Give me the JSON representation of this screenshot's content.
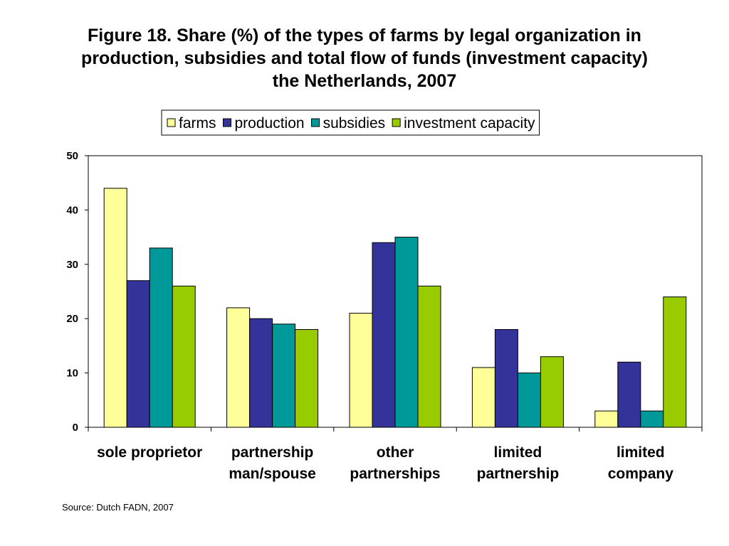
{
  "title_lines": [
    "Figure 18. Share (%) of the types of farms by legal organization in",
    "production, subsidies and total flow of funds (investment capacity)",
    "the Netherlands, 2007"
  ],
  "source": "Source: Dutch FADN, 2007",
  "chart_data": {
    "type": "bar",
    "title": "Figure 18. Share (%) of the types of farms by legal organization in production, subsidies and total flow of funds (investment capacity) the Netherlands, 2007",
    "categories": [
      [
        "sole proprietor"
      ],
      [
        "partnership",
        "man/spouse"
      ],
      [
        "other",
        "partnerships"
      ],
      [
        "limited",
        "partnership"
      ],
      [
        "limited",
        "company"
      ]
    ],
    "series": [
      {
        "name": "farms",
        "color": "#FFFF99",
        "values": [
          44,
          22,
          21,
          11,
          3
        ]
      },
      {
        "name": "production",
        "color": "#333399",
        "values": [
          27,
          20,
          34,
          18,
          12
        ]
      },
      {
        "name": "subsidies",
        "color": "#009999",
        "values": [
          33,
          19,
          35,
          10,
          3
        ]
      },
      {
        "name": "investment capacity",
        "color": "#99CC00",
        "values": [
          26,
          18,
          26,
          13,
          24
        ]
      }
    ],
    "ylim": [
      0,
      50
    ],
    "yticks": [
      0,
      10,
      20,
      30,
      40,
      50
    ],
    "xlabel": "",
    "ylabel": "",
    "legend": "top",
    "grid": false
  }
}
